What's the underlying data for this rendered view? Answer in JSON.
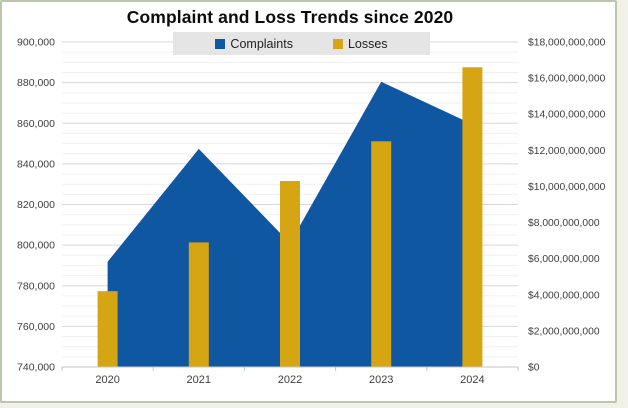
{
  "page": {
    "background_color": "#f1f0e9",
    "panel_border_color": "#bac7a9"
  },
  "chart_data": {
    "type": "combo",
    "title": "Complaint and Loss Trends since 2020",
    "categories": [
      "2020",
      "2021",
      "2022",
      "2023",
      "2024"
    ],
    "series": [
      {
        "name": "Complaints",
        "chart_type": "area",
        "axis": "left",
        "color": "#1057a2",
        "values": [
          791790,
          847376,
          800944,
          880418,
          859532
        ]
      },
      {
        "name": "Losses",
        "chart_type": "bar",
        "axis": "right",
        "color": "#d6a513",
        "values": [
          4200000000,
          6900000000,
          10300000000,
          12500000000,
          16600000000
        ]
      }
    ],
    "left_axis": {
      "min": 740000,
      "max": 900000,
      "major_step": 20000,
      "minor_step": 5000,
      "tick_labels": [
        "900,000",
        "880,000",
        "860,000",
        "840,000",
        "820,000",
        "800,000",
        "780,000",
        "760,000",
        "740,000"
      ]
    },
    "right_axis": {
      "min": 0,
      "max": 18000000000,
      "major_step": 2000000000,
      "tick_labels": [
        "$18,000,000,000",
        "$16,000,000,000",
        "$14,000,000,000",
        "$12,000,000,000",
        "$10,000,000,000",
        "$8,000,000,000",
        "$6,000,000,000",
        "$4,000,000,000",
        "$2,000,000,000",
        "$0"
      ]
    },
    "legend_position": "top",
    "grid": {
      "major_color": "#d8d8d8",
      "minor_color": "#f0f0f0",
      "axis_line_color": "#c6c6c6",
      "minor_gridlines_on": true
    }
  }
}
